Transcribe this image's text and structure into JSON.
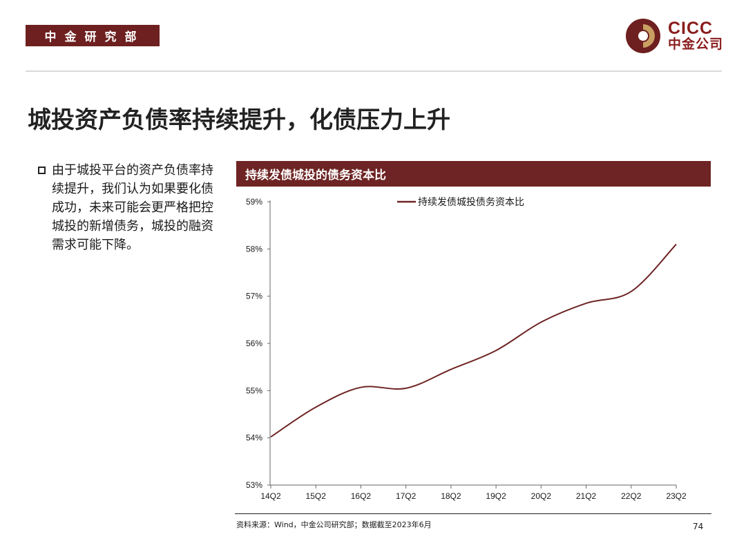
{
  "header": {
    "dept_label": "中金研究部",
    "logo_en": "CICC",
    "logo_cn": "中金公司"
  },
  "page_title": "城投资产负债率持续提升，化债压力上升",
  "bullet_text": "由于城投平台的资产负债率持续提升，我们认为如果要化债成功，未来可能会更严格把控城投的新增债务，城投的融资需求可能下降。",
  "chart_header": "持续发债城投的债务资本比",
  "colors": {
    "brand": "#6e2424",
    "line": "#6e2424",
    "logo_gold": "#c9a063"
  },
  "chart_data": {
    "type": "line",
    "title": "持续发债城投的债务资本比",
    "xlabel": "",
    "ylabel": "",
    "categories": [
      "14Q2",
      "15Q2",
      "16Q2",
      "17Q2",
      "18Q2",
      "19Q2",
      "20Q2",
      "21Q2",
      "22Q2",
      "23Q2"
    ],
    "y_ticks": [
      "53%",
      "54%",
      "55%",
      "56%",
      "57%",
      "58%",
      "59%"
    ],
    "ylim": [
      53,
      59
    ],
    "legend_position": "top-center",
    "series": [
      {
        "name": "持续发债城投债务资本比",
        "values": [
          54.02,
          54.65,
          55.07,
          55.05,
          55.45,
          55.85,
          56.45,
          56.85,
          57.1,
          58.1
        ]
      }
    ]
  },
  "footer": {
    "source": "资料来源：Wind，中金公司研究部；数据截至2023年6月",
    "page_number": "74"
  }
}
